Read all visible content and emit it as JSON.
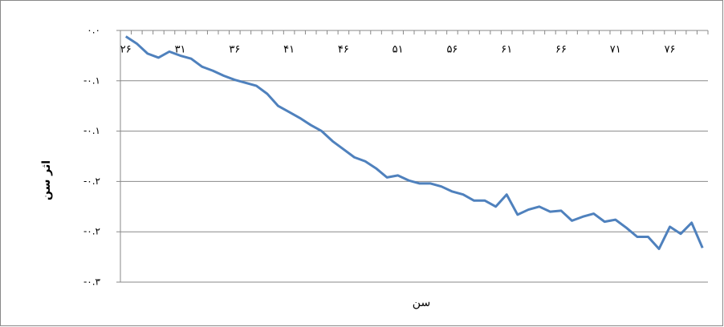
{
  "chart_data": {
    "type": "line",
    "x_label": "سن",
    "y_label": "اثر سن",
    "categories": [
      "۲۶",
      null,
      null,
      null,
      null,
      "۳۱",
      null,
      null,
      null,
      null,
      "۳۶",
      null,
      null,
      null,
      null,
      "۴۱",
      null,
      null,
      null,
      null,
      "۴۶",
      null,
      null,
      null,
      null,
      "۵۱",
      null,
      null,
      null,
      null,
      "۵۶",
      null,
      null,
      null,
      null,
      "۶۱",
      null,
      null,
      null,
      null,
      "۶۶",
      null,
      null,
      null,
      null,
      "۷۱",
      null,
      null,
      null,
      null,
      "۷۶",
      null,
      null,
      null
    ],
    "series": [
      {
        "color": "#4f81bd",
        "values": [
          -0.006,
          -0.013,
          -0.023,
          -0.027,
          -0.021,
          -0.025,
          -0.028,
          -0.036,
          -0.04,
          -0.045,
          -0.049,
          -0.052,
          -0.055,
          -0.063,
          -0.075,
          -0.081,
          -0.087,
          -0.094,
          -0.1,
          -0.11,
          -0.118,
          -0.126,
          -0.13,
          -0.137,
          -0.146,
          -0.144,
          -0.149,
          -0.152,
          -0.152,
          -0.155,
          -0.16,
          -0.163,
          -0.169,
          -0.169,
          -0.175,
          -0.163,
          -0.183,
          -0.178,
          -0.175,
          -0.18,
          -0.179,
          -0.189,
          -0.185,
          -0.182,
          -0.19,
          -0.188,
          -0.196,
          -0.205,
          -0.205,
          -0.217,
          -0.195,
          -0.202,
          -0.191,
          -0.216
        ]
      }
    ],
    "ylim": [
      -0.25,
      0
    ],
    "yticks": [
      {
        "value": 0,
        "label": "۰.۰"
      },
      {
        "value": -0.05,
        "label": "-۰.۱"
      },
      {
        "value": -0.1,
        "label": "-۰.۱"
      },
      {
        "value": -0.15,
        "label": "-۰.۲"
      },
      {
        "value": -0.2,
        "label": "-۰.۲"
      },
      {
        "value": -0.25,
        "label": "-۰.۳"
      }
    ],
    "grid": true
  }
}
